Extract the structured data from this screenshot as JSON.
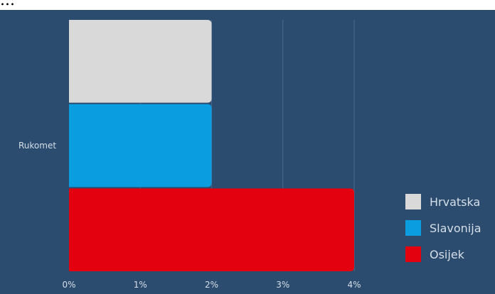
{
  "page_heading": "...",
  "chart_data": {
    "type": "bar",
    "orientation": "horizontal",
    "categories": [
      "Rukomet"
    ],
    "series": [
      {
        "name": "Hrvatska",
        "values": [
          2
        ],
        "color": "#d9d9d9"
      },
      {
        "name": "Slavonija",
        "values": [
          2
        ],
        "color": "#0a9de0"
      },
      {
        "name": "Osijek",
        "values": [
          4
        ],
        "color": "#e3000f"
      }
    ],
    "unit": "%",
    "xlim": [
      0,
      4
    ],
    "ticks": [
      "0%",
      "1%",
      "2%",
      "3%",
      "4%"
    ],
    "grid": true,
    "legend": "right",
    "background": "#2b4c6f",
    "grid_color": "#4a6a8c",
    "text_color": "#d6dfe9"
  }
}
